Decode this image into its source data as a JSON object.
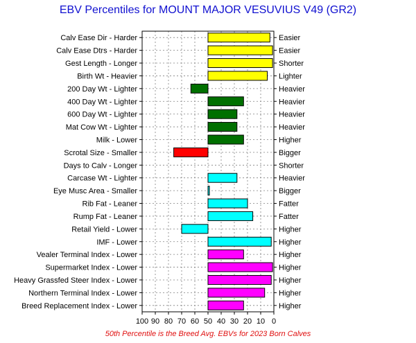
{
  "chart_data": {
    "type": "bar",
    "title": "EBV Percentiles for MOUNT MAJOR VESUVIUS V49 (GR2)",
    "footer": "50th Percentile is the Breed Avg. EBVs for 2023 Born Calves",
    "x_ticks": [
      "100",
      "90",
      "80",
      "70",
      "60",
      "50",
      "40",
      "30",
      "20",
      "10",
      "0"
    ],
    "xlim": [
      100,
      0
    ],
    "baseline": 50,
    "grid": true,
    "rows": [
      {
        "left": "Calv Ease Dir - Harder",
        "right": "Easier",
        "value": 3,
        "color": "#ffff00"
      },
      {
        "left": "Calv Ease Dtrs - Harder",
        "right": "Easier",
        "value": 1,
        "color": "#ffff00"
      },
      {
        "left": "Gest Length - Longer",
        "right": "Shorter",
        "value": 1,
        "color": "#ffff00"
      },
      {
        "left": "Birth Wt - Heavier",
        "right": "Lighter",
        "value": 5,
        "color": "#ffff00"
      },
      {
        "left": "200 Day Wt - Lighter",
        "right": "Heavier",
        "value": 63,
        "color": "#007000"
      },
      {
        "left": "400 Day Wt - Lighter",
        "right": "Heavier",
        "value": 23,
        "color": "#007000"
      },
      {
        "left": "600 Day Wt - Lighter",
        "right": "Heavier",
        "value": 28,
        "color": "#007000"
      },
      {
        "left": "Mat Cow Wt - Lighter",
        "right": "Heavier",
        "value": 28,
        "color": "#007000"
      },
      {
        "left": "Milk - Lower",
        "right": "Higher",
        "value": 23,
        "color": "#007000"
      },
      {
        "left": "Scrotal Size - Smaller",
        "right": "Bigger",
        "value": 76,
        "color": "#ff0000"
      },
      {
        "left": "Days to Calv - Longer",
        "right": "Shorter",
        "value": null,
        "color": "#ff0000"
      },
      {
        "left": "Carcase Wt - Lighter",
        "right": "Heavier",
        "value": 28,
        "color": "#00ffff"
      },
      {
        "left": "Eye Musc Area - Smaller",
        "right": "Bigger",
        "value": 49,
        "color": "#00ffff"
      },
      {
        "left": "Rib Fat - Leaner",
        "right": "Fatter",
        "value": 20,
        "color": "#00ffff"
      },
      {
        "left": "Rump Fat - Leaner",
        "right": "Fatter",
        "value": 16,
        "color": "#00ffff"
      },
      {
        "left": "Retail Yield - Lower",
        "right": "Higher",
        "value": 70,
        "color": "#00ffff"
      },
      {
        "left": "IMF - Lower",
        "right": "Higher",
        "value": 2,
        "color": "#00ffff"
      },
      {
        "left": "Vealer Terminal Index - Lower",
        "right": "Higher",
        "value": 23,
        "color": "#ff00ff"
      },
      {
        "left": "Supermarket Index - Lower",
        "right": "Higher",
        "value": 1,
        "color": "#ff00ff"
      },
      {
        "left": "Heavy Grassfed Steer Index - Lower",
        "right": "Higher",
        "value": 2,
        "color": "#ff00ff"
      },
      {
        "left": "Northern Terminal Index - Lower",
        "right": "Higher",
        "value": 7,
        "color": "#ff00ff"
      },
      {
        "left": "Breed Replacement Index - Lower",
        "right": "Higher",
        "value": 23,
        "color": "#ff00ff"
      }
    ]
  }
}
